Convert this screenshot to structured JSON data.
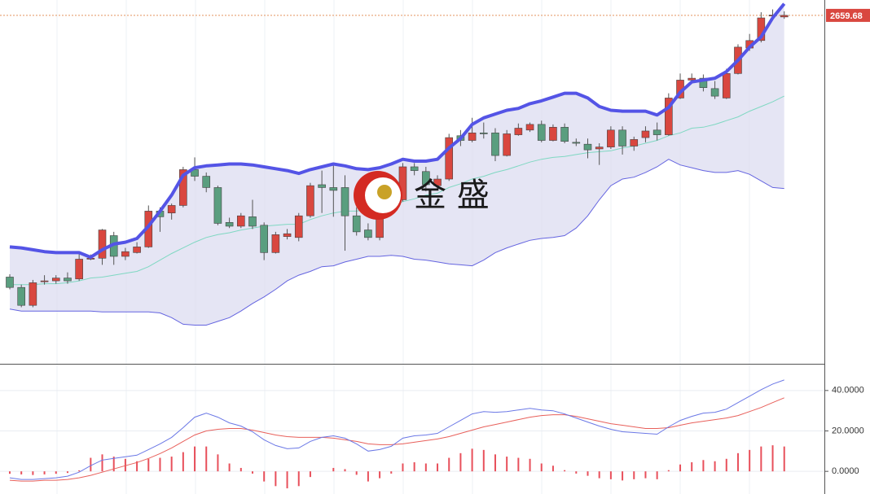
{
  "chart_data": [
    {
      "type": "candlestick",
      "open": [
        2382,
        2371,
        2352,
        2377,
        2378,
        2381,
        2380,
        2401,
        2402,
        2426,
        2404,
        2408,
        2414,
        2452,
        2450,
        2458,
        2496,
        2489,
        2477,
        2440,
        2436,
        2446,
        2437,
        2408,
        2425,
        2424,
        2447,
        2480,
        2477,
        2477,
        2447,
        2432,
        2424,
        2453,
        2464,
        2499,
        2494,
        2479,
        2486,
        2532,
        2527,
        2535,
        2535,
        2511,
        2533,
        2538,
        2544,
        2527,
        2541,
        2525,
        2523,
        2518,
        2520,
        2538,
        2521,
        2530,
        2538,
        2533,
        2572,
        2591,
        2593,
        2582,
        2572,
        2598,
        2625,
        2633,
        2659,
        2658
      ],
      "high": [
        2385,
        2374,
        2379,
        2384,
        2384,
        2387,
        2407,
        2406,
        2433,
        2430,
        2413,
        2419,
        2458,
        2456,
        2460,
        2499,
        2509,
        2493,
        2479,
        2445,
        2450,
        2464,
        2440,
        2430,
        2433,
        2450,
        2482,
        2495,
        2503,
        2490,
        2456,
        2439,
        2460,
        2469,
        2503,
        2503,
        2499,
        2490,
        2534,
        2538,
        2551,
        2546,
        2540,
        2538,
        2545,
        2546,
        2548,
        2544,
        2545,
        2529,
        2529,
        2524,
        2542,
        2542,
        2531,
        2542,
        2546,
        2577,
        2598,
        2598,
        2597,
        2590,
        2603,
        2629,
        2640,
        2663,
        2666,
        2664
      ],
      "low": [
        2369,
        2350,
        2350,
        2374,
        2375,
        2375,
        2378,
        2400,
        2395,
        2395,
        2400,
        2407,
        2413,
        2430,
        2443,
        2456,
        2484,
        2472,
        2437,
        2434,
        2434,
        2433,
        2400,
        2407,
        2422,
        2420,
        2445,
        2450,
        2446,
        2410,
        2426,
        2421,
        2421,
        2452,
        2462,
        2490,
        2473,
        2476,
        2484,
        2521,
        2525,
        2529,
        2505,
        2510,
        2532,
        2536,
        2525,
        2526,
        2524,
        2521,
        2508,
        2501,
        2518,
        2512,
        2516,
        2525,
        2527,
        2532,
        2571,
        2588,
        2579,
        2571,
        2571,
        2597,
        2622,
        2631,
        2657,
        2656
      ],
      "close": [
        2371,
        2352,
        2376,
        2378,
        2381,
        2378,
        2401,
        2402,
        2432,
        2404,
        2409,
        2414,
        2452,
        2446,
        2458,
        2496,
        2489,
        2477,
        2439,
        2436,
        2447,
        2436,
        2408,
        2427,
        2428,
        2447,
        2479,
        2477,
        2474,
        2447,
        2430,
        2424,
        2453,
        2464,
        2499,
        2495,
        2480,
        2486,
        2530,
        2527,
        2535,
        2534,
        2511,
        2534,
        2540,
        2544,
        2527,
        2541,
        2526,
        2524,
        2517,
        2520,
        2538,
        2521,
        2528,
        2537,
        2533,
        2572,
        2591,
        2593,
        2583,
        2574,
        2598,
        2626,
        2633,
        2657,
        2660,
        2659.68
      ],
      "up_color": "#d9473f",
      "down_color": "#5a9e7f",
      "bollinger": {
        "upper": [
          2414,
          2413,
          2411,
          2409,
          2408,
          2408,
          2408,
          2403,
          2411,
          2417,
          2419,
          2423,
          2436,
          2452,
          2469,
          2490,
          2498,
          2500,
          2501,
          2502,
          2502,
          2501,
          2499,
          2497,
          2495,
          2492,
          2496,
          2499,
          2502,
          2500,
          2497,
          2496,
          2498,
          2502,
          2507,
          2505,
          2505,
          2507,
          2519,
          2529,
          2544,
          2551,
          2555,
          2559,
          2561,
          2566,
          2569,
          2573,
          2577,
          2577,
          2572,
          2563,
          2559,
          2558,
          2558,
          2558,
          2554,
          2562,
          2578,
          2589,
          2591,
          2593,
          2600,
          2612,
          2626,
          2637,
          2657,
          2672
        ],
        "middle": [
          2374,
          2374,
          2374,
          2375,
          2375,
          2376,
          2378,
          2381,
          2382,
          2384,
          2386,
          2388,
          2393,
          2400,
          2407,
          2413,
          2419,
          2424,
          2427,
          2429,
          2432,
          2434,
          2436,
          2437,
          2438,
          2438,
          2443,
          2447,
          2450,
          2452,
          2452,
          2454,
          2456,
          2458,
          2462,
          2465,
          2469,
          2471,
          2477,
          2481,
          2486,
          2489,
          2493,
          2496,
          2500,
          2504,
          2507,
          2509,
          2510,
          2512,
          2514,
          2515,
          2516,
          2519,
          2521,
          2524,
          2527,
          2532,
          2535,
          2540,
          2541,
          2544,
          2548,
          2552,
          2558,
          2563,
          2568,
          2574
        ],
        "lower": [
          2348,
          2346,
          2346,
          2346,
          2346,
          2346,
          2346,
          2346,
          2345,
          2345,
          2345,
          2345,
          2345,
          2344,
          2339,
          2332,
          2331,
          2331,
          2335,
          2339,
          2346,
          2354,
          2361,
          2369,
          2378,
          2384,
          2388,
          2393,
          2394,
          2398,
          2401,
          2404,
          2404,
          2405,
          2404,
          2401,
          2400,
          2398,
          2396,
          2395,
          2394,
          2400,
          2408,
          2413,
          2417,
          2421,
          2423,
          2424,
          2426,
          2434,
          2447,
          2464,
          2479,
          2486,
          2488,
          2493,
          2499,
          2507,
          2501,
          2498,
          2495,
          2493,
          2493,
          2495,
          2491,
          2484,
          2477,
          2476
        ],
        "upper_color": "#5454e6",
        "middle_color": "#7fd8c2",
        "lower_color": "#6464e0",
        "fill": "#dcdcf0"
      },
      "last_price": 2659.68,
      "last_price_color": "#d9473f",
      "ylim": [
        2290,
        2676
      ]
    },
    {
      "type": "macd",
      "dif": {
        "color": "#6b78e6",
        "values": [
          -3.2,
          -4,
          -4,
          -3.6,
          -3.2,
          -2.4,
          -0.4,
          2.8,
          5.6,
          6.4,
          7.2,
          8,
          10.8,
          13.6,
          16.8,
          21.6,
          26.8,
          28.8,
          26.8,
          24,
          22.4,
          19.6,
          15.6,
          12.8,
          11.2,
          11.6,
          14.8,
          16.8,
          17.6,
          16.4,
          13.6,
          10,
          10.8,
          12.4,
          16.4,
          17.6,
          18,
          18.8,
          22,
          25.2,
          28.4,
          29.6,
          29.2,
          29.6,
          30.4,
          31.2,
          30.4,
          30,
          28.4,
          26.4,
          24.4,
          22.4,
          20.8,
          19.6,
          19.2,
          18.8,
          18.4,
          22,
          25.2,
          27.2,
          28.8,
          29.2,
          30.8,
          34,
          37.2,
          40.4,
          43.2,
          45.2
        ]
      },
      "dea": {
        "color": "#e8605b",
        "values": [
          -4.4,
          -4.8,
          -4.8,
          -4.4,
          -4.4,
          -4,
          -3.2,
          -2,
          -0.4,
          1.2,
          2.8,
          4.4,
          6.4,
          8.8,
          11.6,
          14.8,
          18,
          20,
          20.8,
          21.2,
          21.2,
          20.4,
          19.2,
          18,
          17.2,
          16.8,
          16.8,
          16.8,
          16.4,
          15.6,
          14.8,
          13.6,
          13.2,
          13.2,
          13.6,
          14.4,
          15.2,
          16,
          17.2,
          18.8,
          20.4,
          22,
          23.2,
          24.4,
          25.6,
          26.8,
          27.6,
          28,
          28,
          27.2,
          26,
          24.8,
          23.6,
          22.8,
          22,
          21.2,
          21.2,
          21.6,
          22.8,
          24,
          24.8,
          25.6,
          26.4,
          27.6,
          29.6,
          31.6,
          34,
          36.4
        ]
      },
      "histogram": {
        "color": "#e8505b",
        "values": [
          -1.2,
          -1.5,
          -1.8,
          -1.5,
          -1.2,
          -0.8,
          0.5,
          6.7,
          8.4,
          7.3,
          6.2,
          5,
          6.2,
          6.7,
          7.3,
          9.5,
          12.3,
          12.3,
          8.4,
          3.9,
          1.7,
          -1.1,
          -5,
          -7.3,
          -8.4,
          -7.3,
          -2.8,
          0,
          1.7,
          1.1,
          -1.7,
          -5,
          -3.4,
          -1.1,
          3.9,
          4.5,
          3.9,
          3.9,
          6.7,
          9,
          11.2,
          10.6,
          8.4,
          7.3,
          6.7,
          6.2,
          3.9,
          2.8,
          0.6,
          -1.1,
          -2.2,
          -3.4,
          -3.9,
          -4.5,
          -3.9,
          -3.4,
          -3.9,
          0.6,
          3.4,
          4.5,
          5.6,
          5,
          6.2,
          9,
          10.6,
          12.3,
          12.9,
          12.3
        ]
      },
      "ylim": [
        -11.2,
        51.2
      ],
      "yticks": [
        {
          "value": 40,
          "label": "40.0000"
        },
        {
          "value": 20,
          "label": "20.0000"
        },
        {
          "value": 0,
          "label": "0.0000"
        }
      ],
      "grid": true
    }
  ],
  "watermark": "金 盛"
}
